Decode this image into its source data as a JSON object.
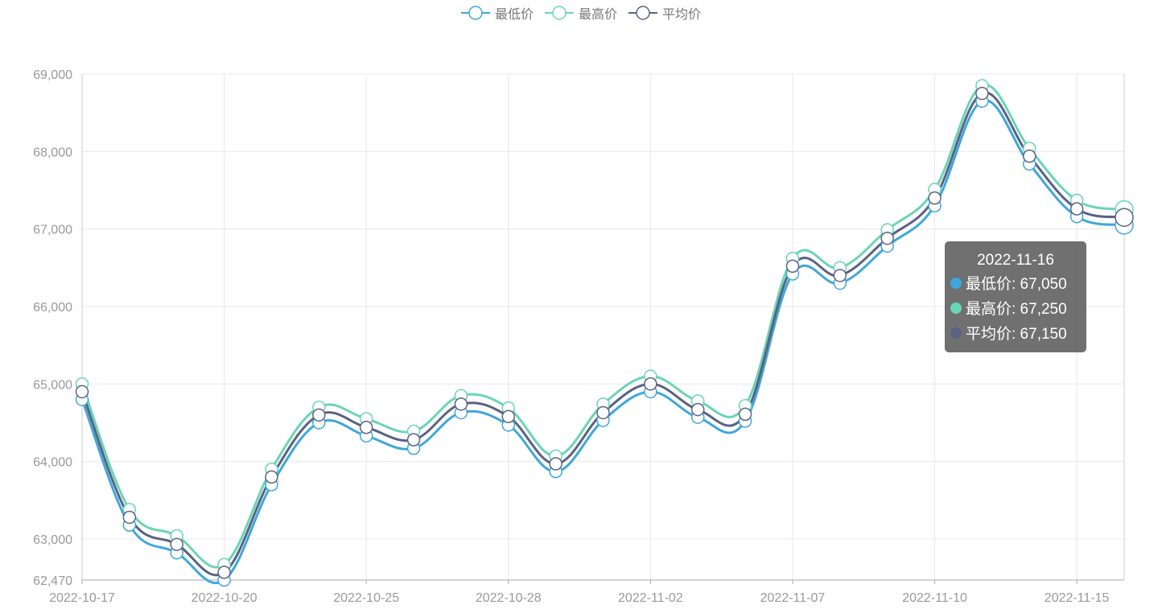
{
  "legend": [
    {
      "name": "最低价",
      "color": "#3fa7dc"
    },
    {
      "name": "最高价",
      "color": "#6ad5b4"
    },
    {
      "name": "平均价",
      "color": "#5b6283"
    }
  ],
  "tooltip": {
    "date": "2022-11-16",
    "rows": [
      {
        "label": "最低价: 67,050",
        "color": "#3fa7dc"
      },
      {
        "label": "最高价: 67,250",
        "color": "#6ad5b4"
      },
      {
        "label": "平均价: 67,150",
        "color": "#5b6283"
      }
    ]
  },
  "chart_data": {
    "type": "line",
    "x": [
      "2022-10-17",
      "2022-10-18",
      "2022-10-19",
      "2022-10-20",
      "2022-10-21",
      "2022-10-24",
      "2022-10-25",
      "2022-10-26",
      "2022-10-27",
      "2022-10-28",
      "2022-10-31",
      "2022-11-01",
      "2022-11-02",
      "2022-11-03",
      "2022-11-04",
      "2022-11-07",
      "2022-11-08",
      "2022-11-09",
      "2022-11-10",
      "2022-11-11",
      "2022-11-14",
      "2022-11-15",
      "2022-11-16"
    ],
    "x_tick_labels": [
      "2022-10-17",
      "2022-10-20",
      "2022-10-25",
      "2022-10-28",
      "2022-11-02",
      "2022-11-07",
      "2022-11-10",
      "2022-11-15"
    ],
    "y_tick_labels": [
      "62,470",
      "63,000",
      "64,000",
      "65,000",
      "66,000",
      "67,000",
      "68,000",
      "69,000"
    ],
    "ylim": [
      62470,
      69000
    ],
    "grid": true,
    "smooth": true,
    "series": [
      {
        "name": "最低价",
        "values": [
          64800,
          63180,
          62820,
          62470,
          63700,
          64500,
          64330,
          64170,
          64630,
          64470,
          63870,
          64530,
          64900,
          64570,
          64520,
          66420,
          66300,
          66780,
          67300,
          68650,
          67840,
          67160,
          67050
        ]
      },
      {
        "name": "最高价",
        "values": [
          65000,
          63380,
          63040,
          62670,
          63900,
          64700,
          64550,
          64390,
          64850,
          64690,
          64070,
          64740,
          65100,
          64780,
          64720,
          66620,
          66500,
          66990,
          67510,
          68850,
          68040,
          67370,
          67250
        ]
      },
      {
        "name": "平均价",
        "values": [
          64900,
          63280,
          62930,
          62570,
          63800,
          64600,
          64440,
          64280,
          64740,
          64580,
          63970,
          64630,
          65000,
          64670,
          64610,
          66520,
          66400,
          66880,
          67400,
          68750,
          67940,
          67260,
          67150
        ]
      }
    ]
  }
}
